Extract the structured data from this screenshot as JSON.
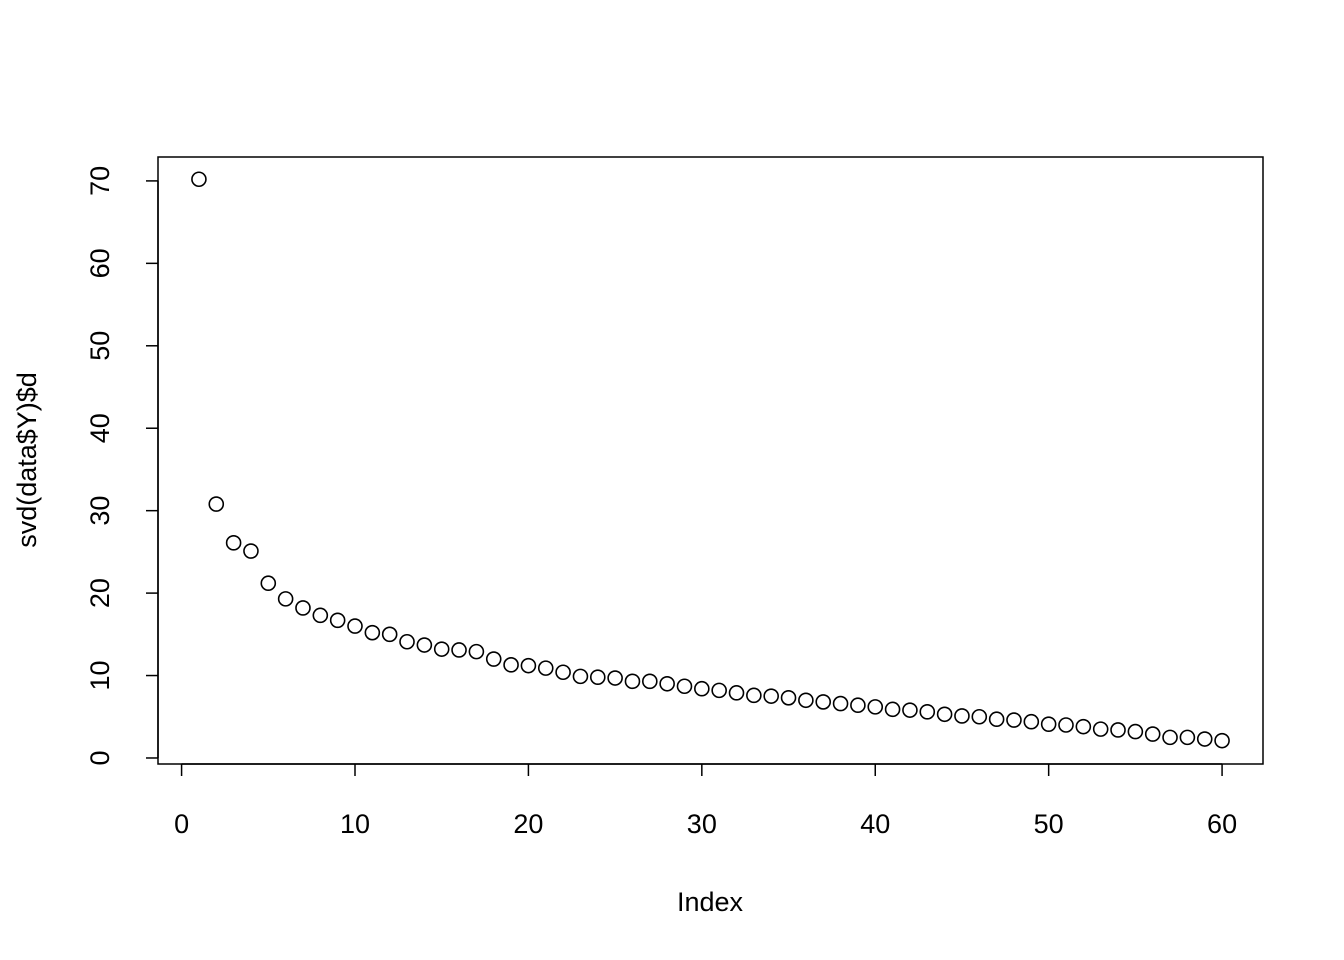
{
  "chart_data": {
    "type": "scatter",
    "x_label": "Index",
    "y_label": "svd(data$Y)$d",
    "x": [
      1,
      2,
      3,
      4,
      5,
      6,
      7,
      8,
      9,
      10,
      11,
      12,
      13,
      14,
      15,
      16,
      17,
      18,
      19,
      20,
      21,
      22,
      23,
      24,
      25,
      26,
      27,
      28,
      29,
      30,
      31,
      32,
      33,
      34,
      35,
      36,
      37,
      38,
      39,
      40,
      41,
      42,
      43,
      44,
      45,
      46,
      47,
      48,
      49,
      50,
      51,
      52,
      53,
      54,
      55,
      56,
      57,
      58,
      59,
      60
    ],
    "values": [
      70.2,
      30.8,
      26.1,
      25.1,
      21.2,
      19.3,
      18.2,
      17.3,
      16.7,
      16.0,
      15.2,
      15.0,
      14.1,
      13.7,
      13.2,
      13.1,
      12.9,
      12.0,
      11.3,
      11.2,
      10.9,
      10.4,
      9.9,
      9.8,
      9.7,
      9.3,
      9.3,
      9.0,
      8.7,
      8.4,
      8.2,
      7.9,
      7.6,
      7.5,
      7.3,
      7.0,
      6.8,
      6.6,
      6.4,
      6.2,
      5.9,
      5.8,
      5.6,
      5.3,
      5.1,
      5.0,
      4.7,
      4.6,
      4.4,
      4.1,
      4.0,
      3.8,
      3.5,
      3.4,
      3.2,
      2.9,
      2.5,
      2.5,
      2.3,
      2.1
    ],
    "color": "#000000",
    "xlim": [
      -1.36,
      62.36
    ],
    "xticks": [
      0,
      10,
      20,
      30,
      40,
      50,
      60
    ],
    "ylim": [
      -0.73,
      72.9
    ],
    "yticks": [
      0,
      10,
      20,
      30,
      40,
      50,
      60,
      70
    ]
  }
}
